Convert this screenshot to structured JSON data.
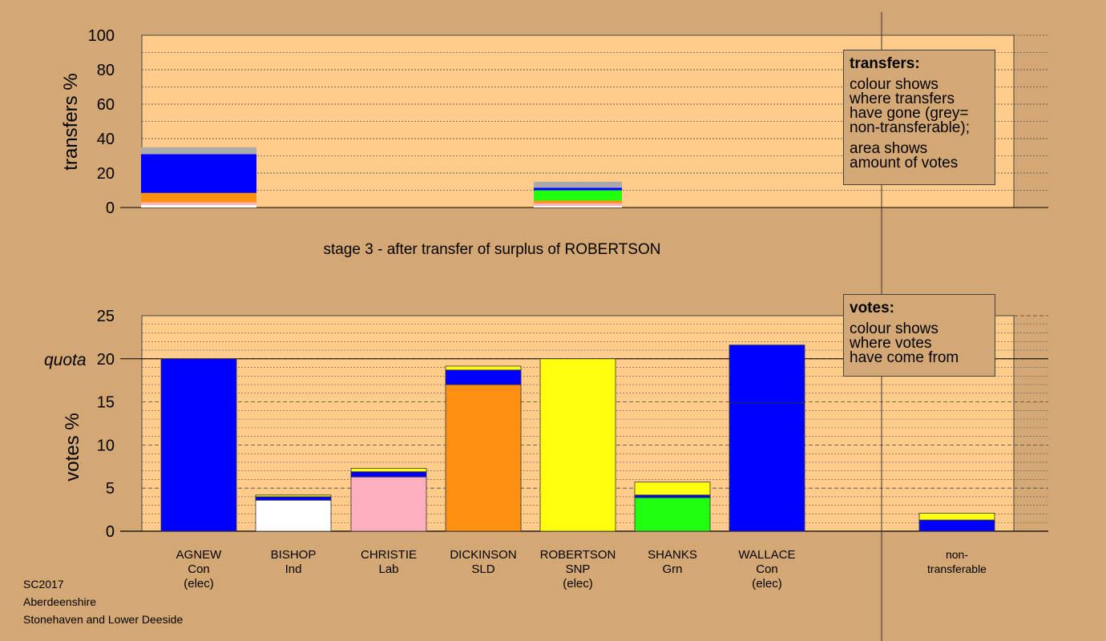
{
  "stage_title": "stage 3 - after transfer of surplus of ROBERTSON",
  "footer": {
    "line1": "SC2017",
    "line2": "Aberdeenshire",
    "line3": "Stonehaven and Lower Deeside"
  },
  "legend_transfers": {
    "title": "transfers:",
    "lines": [
      "colour shows",
      "where transfers",
      "have gone (grey=",
      "non-transferable);",
      "area shows",
      "amount of votes"
    ]
  },
  "legend_votes": {
    "title": "votes:",
    "lines": [
      "colour shows",
      "where votes",
      "have come from"
    ]
  },
  "colors": {
    "background": "#D4A874",
    "plot_bg": "#FFCC8C",
    "Con": "#0000FF",
    "Ind": "#FFFFFF",
    "Lab": "#FFB0C0",
    "SLD": "#FF9010",
    "SNP": "#FFFF10",
    "Grn": "#20FF10",
    "nontransferable": "#AAAAAA"
  },
  "chart_data": [
    {
      "type": "bar",
      "stacked": true,
      "ylabel": "transfers %",
      "ylim": [
        0,
        100
      ],
      "yticks": [
        0,
        20,
        40,
        60,
        80,
        100
      ],
      "grid": true,
      "bars": [
        {
          "column": "AGNEW",
          "wide": true,
          "segments": [
            {
              "party": "Ind",
              "value": 1.5
            },
            {
              "party": "Lab",
              "value": 1.5
            },
            {
              "party": "SLD",
              "value": 5.5
            },
            {
              "party": "Con",
              "value": 22.5
            },
            {
              "party": "nontransferable",
              "value": 4
            }
          ]
        },
        {
          "column": "ROBERTSON",
          "wide": false,
          "segments": [
            {
              "party": "Ind",
              "value": 1
            },
            {
              "party": "Lab",
              "value": 1.5
            },
            {
              "party": "SLD",
              "value": 1.5
            },
            {
              "party": "Grn",
              "value": 6
            },
            {
              "party": "Con",
              "value": 1.5
            },
            {
              "party": "nontransferable",
              "value": 3.5
            }
          ]
        }
      ]
    },
    {
      "type": "bar",
      "stacked": true,
      "ylabel": "votes %",
      "ylim": [
        0,
        25
      ],
      "yticks": [
        0,
        5,
        10,
        15,
        20,
        25
      ],
      "quota": 20,
      "quota_label": "quota",
      "grid": true,
      "candidates": [
        {
          "name": "AGNEW",
          "party": "Con",
          "status": "(elec)",
          "segments": [
            {
              "party": "Con",
              "value": 20
            }
          ]
        },
        {
          "name": "BISHOP",
          "party": "Ind",
          "status": "",
          "segments": [
            {
              "party": "Ind",
              "value": 3.6
            },
            {
              "party": "Con",
              "value": 0.4
            },
            {
              "party": "SNP",
              "value": 0.2
            }
          ]
        },
        {
          "name": "CHRISTIE",
          "party": "Lab",
          "status": "",
          "segments": [
            {
              "party": "Lab",
              "value": 6.3
            },
            {
              "party": "Con",
              "value": 0.6
            },
            {
              "party": "SNP",
              "value": 0.4
            }
          ]
        },
        {
          "name": "DICKINSON",
          "party": "SLD",
          "status": "",
          "segments": [
            {
              "party": "SLD",
              "value": 17
            },
            {
              "party": "Con",
              "value": 1.7
            },
            {
              "party": "SNP",
              "value": 0.45
            }
          ]
        },
        {
          "name": "ROBERTSON",
          "party": "SNP",
          "status": "(elec)",
          "segments": [
            {
              "party": "SNP",
              "value": 20
            }
          ]
        },
        {
          "name": "SHANKS",
          "party": "Grn",
          "status": "",
          "segments": [
            {
              "party": "Grn",
              "value": 3.9
            },
            {
              "party": "Con",
              "value": 0.3
            },
            {
              "party": "SNP",
              "value": 1.5
            }
          ]
        },
        {
          "name": "WALLACE",
          "party": "Con",
          "status": "(elec)",
          "segments": [
            {
              "party": "Con",
              "value": 14.9
            },
            {
              "party": "Con",
              "value": 6.7
            }
          ]
        },
        {
          "name": "non-",
          "party": "transferable",
          "status": "",
          "segments": [
            {
              "party": "Con",
              "value": 1.3
            },
            {
              "party": "SNP",
              "value": 0.8
            }
          ]
        }
      ]
    }
  ]
}
